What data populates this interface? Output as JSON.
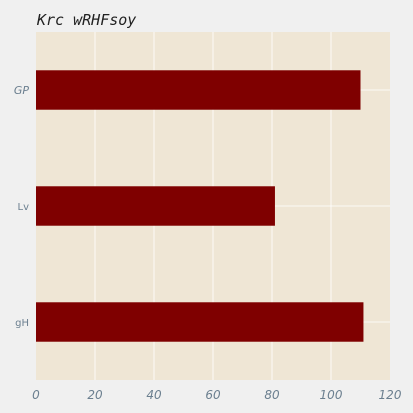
{
  "chart_data": {
    "type": "bar",
    "orientation": "horizontal",
    "title": "Krc wRHFsoy",
    "xlabel": "",
    "ylabel": "",
    "categories": [
      "GP",
      "Lv",
      "gH"
    ],
    "category_label_style": [
      "italic",
      "normal",
      "normal"
    ],
    "values": [
      110,
      81,
      111
    ],
    "xlim": [
      0,
      120
    ],
    "x_ticks": [
      0,
      20,
      40,
      60,
      80,
      100,
      120
    ],
    "grid": true,
    "colors": {
      "bar": "#7f0000",
      "plot_background": "#efe6d5",
      "figure_background": "#f0f0f0",
      "grid": "#ffffff",
      "tick_text": "#6b7f8f"
    }
  }
}
